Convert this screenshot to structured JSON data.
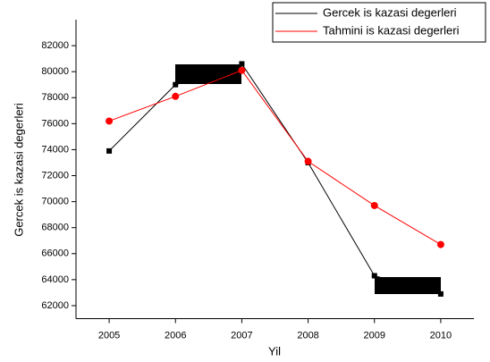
{
  "chart_data": {
    "type": "line",
    "x_label": "Yil",
    "y_label": "Gercek is kazasi degerleri",
    "x": [
      2005,
      2006,
      2007,
      2008,
      2009,
      2010
    ],
    "series": [
      {
        "name": "Gercek is kazasi degerleri",
        "color": "#000000",
        "marker": "square",
        "values": [
          73900,
          79000,
          80600,
          73000,
          64300,
          62900
        ]
      },
      {
        "name": "Tahmini is kazasi degerleri",
        "color": "#ff0000",
        "marker": "circle",
        "values": [
          76200,
          78100,
          80100,
          73100,
          69700,
          66700
        ]
      }
    ],
    "xlim": [
      2004.5,
      2010.5
    ],
    "xticks": [
      2005,
      2006,
      2007,
      2008,
      2009,
      2010
    ],
    "ylim": [
      61000,
      84000
    ],
    "yticks": [
      62000,
      64000,
      66000,
      68000,
      70000,
      72000,
      74000,
      76000,
      78000,
      80000,
      82000
    ],
    "legend": "top-right"
  }
}
